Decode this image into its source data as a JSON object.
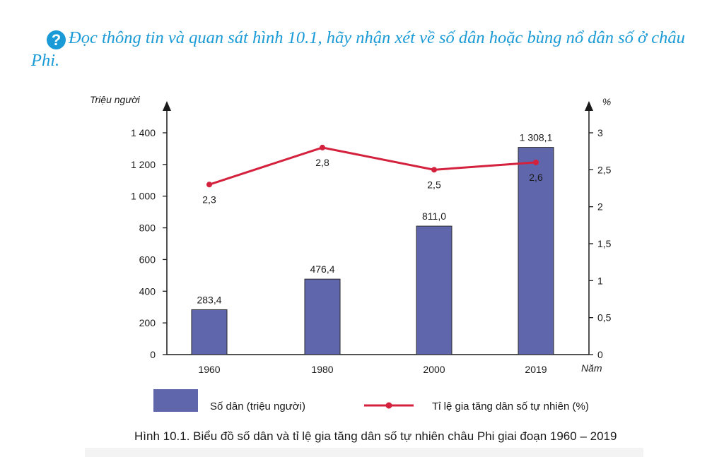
{
  "question": {
    "icon": "?",
    "text": "Đọc thông tin và quan sát hình 10.1, hãy nhận xét về số dân hoặc bùng nổ dân số ở châu Phi."
  },
  "chart_data": {
    "type": "bar+line",
    "categories": [
      "1960",
      "1980",
      "2000",
      "2019"
    ],
    "series": [
      {
        "name": "Số dân (triệu người)",
        "type": "bar",
        "axis": "left",
        "values": [
          283.4,
          476.4,
          811.0,
          1308.1
        ],
        "labels": [
          "283,4",
          "476,4",
          "811,0",
          "1 308,1"
        ],
        "color": "#6066ab"
      },
      {
        "name": "Tỉ lệ gia tăng dân số tự nhiên (%)",
        "type": "line",
        "axis": "right",
        "values": [
          2.3,
          2.8,
          2.5,
          2.6
        ],
        "labels": [
          "2,3",
          "2,8",
          "2,5",
          "2,6"
        ],
        "color": "#d4213d"
      }
    ],
    "left_axis": {
      "label": "Triệu người",
      "ylim": [
        0,
        1400
      ],
      "ticks": [
        0,
        200,
        400,
        600,
        800,
        1000,
        1200,
        1400
      ],
      "tick_labels": [
        "0",
        "200",
        "400",
        "600",
        "800",
        "1 000",
        "1 200",
        "1 400"
      ]
    },
    "right_axis": {
      "label": "%",
      "ylim": [
        0,
        3
      ],
      "ticks": [
        0,
        0.5,
        1,
        1.5,
        2,
        2.5,
        3
      ],
      "tick_labels": [
        "0",
        "0,5",
        "1",
        "1,5",
        "2",
        "2,5",
        "3"
      ]
    },
    "xlabel": "Năm",
    "legend_position": "bottom",
    "grid": false
  },
  "caption": "Hình 10.1. Biểu đồ số dân và tỉ lệ gia tăng dân số tự nhiên châu Phi giai đoạn 1960 – 2019"
}
